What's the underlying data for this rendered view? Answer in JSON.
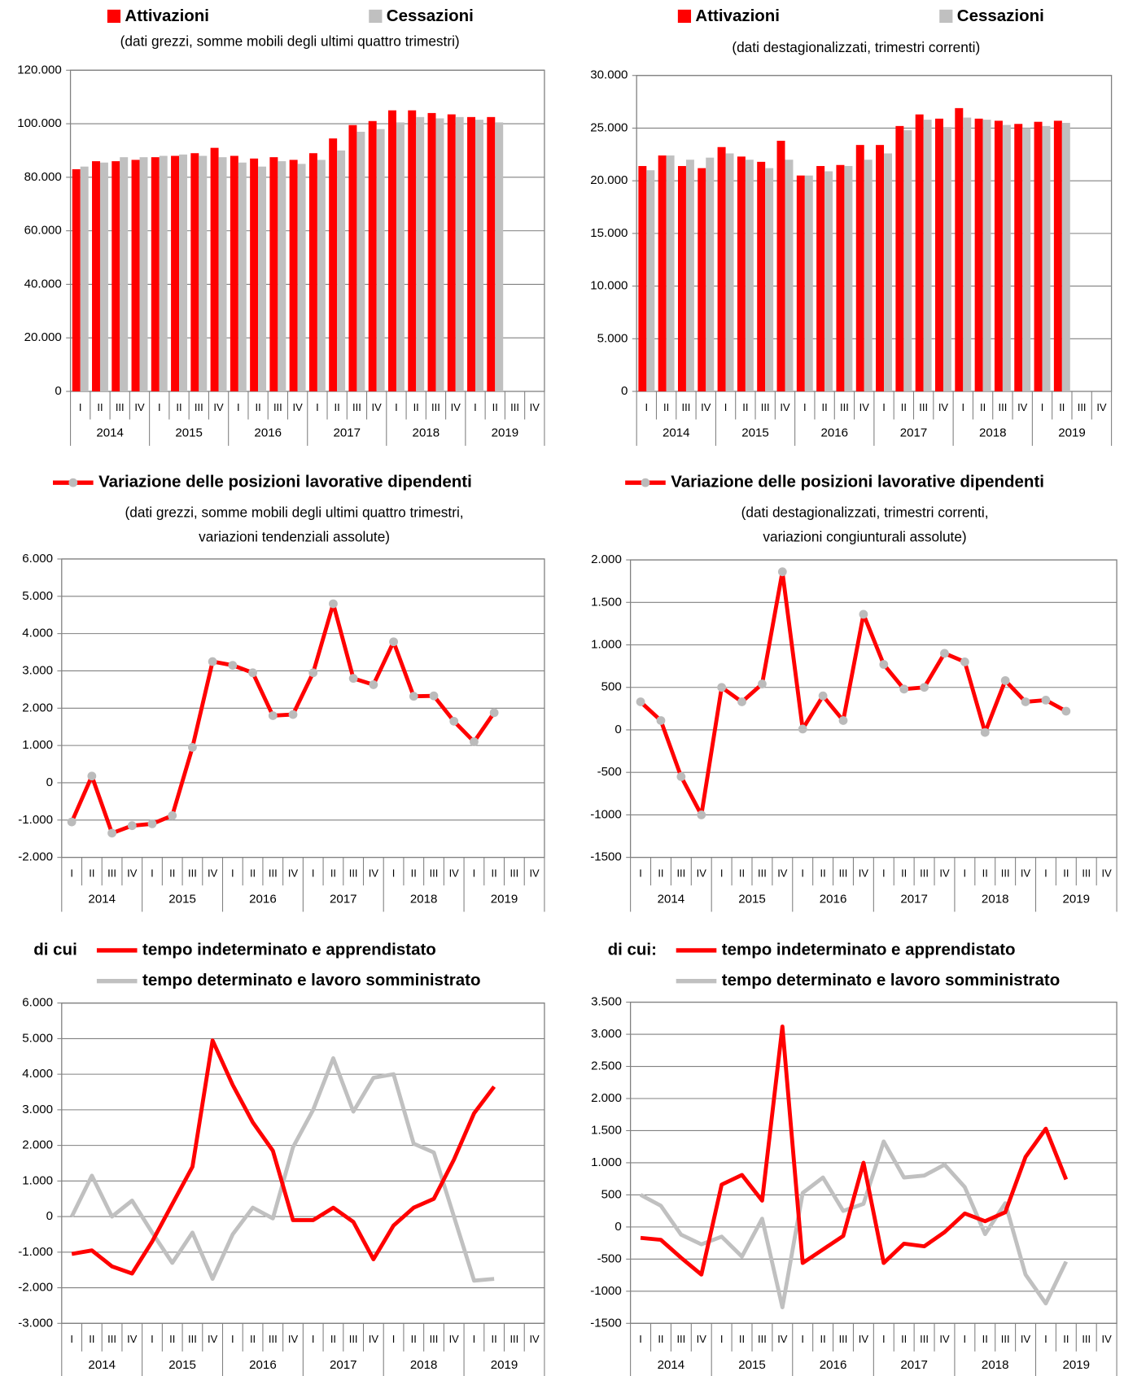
{
  "chart_data": [
    {
      "type": "bar",
      "subtitle": [
        "(dati grezzi, somme mobili degli ultimi quattro trimestri)"
      ],
      "categories": [
        "I",
        "II",
        "III",
        "IV",
        "I",
        "II",
        "III",
        "IV",
        "I",
        "II",
        "III",
        "IV",
        "I",
        "II",
        "III",
        "IV",
        "I",
        "II",
        "III",
        "IV",
        "I",
        "II",
        "III",
        "IV"
      ],
      "years": [
        "2014",
        "2015",
        "2016",
        "2017",
        "2018",
        "2019"
      ],
      "series": [
        {
          "name": "Attivazioni",
          "color": "#ff0000",
          "values": [
            83000,
            86000,
            86000,
            86500,
            87500,
            88000,
            89000,
            91000,
            88000,
            87000,
            87500,
            86500,
            89000,
            94500,
            99500,
            101000,
            105000,
            105000,
            104000,
            103500,
            102500,
            102500,
            null,
            null
          ]
        },
        {
          "name": "Cessazioni",
          "color": "#c0c0c0",
          "values": [
            84000,
            85500,
            87500,
            87500,
            88000,
            88500,
            88000,
            87500,
            85500,
            84000,
            86000,
            85000,
            86500,
            90000,
            97000,
            98000,
            100500,
            102500,
            102000,
            102500,
            101500,
            100500,
            null,
            null
          ]
        }
      ],
      "ylim": [
        0,
        120000
      ],
      "yticks": [
        0,
        {
          "value": 20000,
          "label": "20.000"
        },
        {
          "value": 40000,
          "label": "40.000"
        },
        {
          "value": 60000,
          "label": "60.000"
        },
        {
          "value": 80000,
          "label": "80.000"
        },
        {
          "value": 100000,
          "label": "100.000"
        },
        {
          "value": 120000,
          "label": "120.000"
        }
      ],
      "grid": true
    },
    {
      "type": "bar",
      "subtitle": [
        "(dati destagionalizzati, trimestri correnti)"
      ],
      "categories": [
        "I",
        "II",
        "III",
        "IV",
        "I",
        "II",
        "III",
        "IV",
        "I",
        "II",
        "III",
        "IV",
        "I",
        "II",
        "III",
        "IV",
        "I",
        "II",
        "III",
        "IV",
        "I",
        "II",
        "III",
        "IV"
      ],
      "years": [
        "2014",
        "2015",
        "2016",
        "2017",
        "2018",
        "2019"
      ],
      "series": [
        {
          "name": "Attivazioni",
          "color": "#ff0000",
          "values": [
            21400,
            22400,
            21400,
            21200,
            23200,
            22300,
            21800,
            23800,
            20500,
            21400,
            21500,
            23400,
            23400,
            25200,
            26300,
            25900,
            26900,
            25900,
            25700,
            25400,
            25600,
            25700,
            null,
            null
          ]
        },
        {
          "name": "Cessazioni",
          "color": "#c0c0c0",
          "values": [
            21000,
            22400,
            22000,
            22200,
            22600,
            22000,
            21200,
            22000,
            20500,
            20900,
            21400,
            22000,
            22600,
            24800,
            25800,
            25100,
            26000,
            25800,
            25300,
            25000,
            25200,
            25500,
            null,
            null
          ]
        }
      ],
      "ylim": [
        0,
        30000
      ],
      "yticks": [
        0,
        {
          "value": 5000,
          "label": "5.000"
        },
        {
          "value": 10000,
          "label": "10.000"
        },
        {
          "value": 15000,
          "label": "15.000"
        },
        {
          "value": 20000,
          "label": "20.000"
        },
        {
          "value": 25000,
          "label": "25.000"
        },
        {
          "value": 30000,
          "label": "30.000"
        }
      ],
      "grid": true
    },
    {
      "type": "line",
      "markers": true,
      "subtitle": [
        "(dati grezzi, somme mobili degli ultimi quattro trimestri,",
        "variazioni tendenziali assolute)"
      ],
      "categories": [
        "I",
        "II",
        "III",
        "IV",
        "I",
        "II",
        "III",
        "IV",
        "I",
        "II",
        "III",
        "IV",
        "I",
        "II",
        "III",
        "IV",
        "I",
        "II",
        "III",
        "IV",
        "I",
        "II",
        "III",
        "IV"
      ],
      "years": [
        "2014",
        "2015",
        "2016",
        "2017",
        "2018",
        "2019"
      ],
      "series": [
        {
          "name": "Variazione delle posizioni lavorative dipendenti",
          "color": "#ff0000",
          "values": [
            -1050,
            180,
            -1350,
            -1150,
            -1100,
            -880,
            950,
            3250,
            3150,
            2950,
            1800,
            1830,
            2950,
            4800,
            2800,
            2630,
            3780,
            2320,
            2330,
            1650,
            1100,
            1880,
            null,
            null
          ]
        }
      ],
      "ylim": [
        -2000,
        6000
      ],
      "yticks": [
        {
          "value": -2000,
          "label": "-2.000"
        },
        {
          "value": -1000,
          "label": "-1.000"
        },
        0,
        {
          "value": 1000,
          "label": "1.000"
        },
        {
          "value": 2000,
          "label": "2.000"
        },
        {
          "value": 3000,
          "label": "3.000"
        },
        {
          "value": 4000,
          "label": "4.000"
        },
        {
          "value": 5000,
          "label": "5.000"
        },
        {
          "value": 6000,
          "label": "6.000"
        }
      ],
      "grid": true
    },
    {
      "type": "line",
      "markers": true,
      "subtitle": [
        "(dati destagionalizzati, trimestri correnti,",
        "variazioni congiunturali assolute)"
      ],
      "categories": [
        "I",
        "II",
        "III",
        "IV",
        "I",
        "II",
        "III",
        "IV",
        "I",
        "II",
        "III",
        "IV",
        "I",
        "II",
        "III",
        "IV",
        "I",
        "II",
        "III",
        "IV",
        "I",
        "II",
        "III",
        "IV"
      ],
      "years": [
        "2014",
        "2015",
        "2016",
        "2017",
        "2018",
        "2019"
      ],
      "series": [
        {
          "name": "Variazione delle posizioni lavorative dipendenti",
          "color": "#ff0000",
          "values": [
            330,
            110,
            -550,
            -1000,
            500,
            330,
            540,
            1860,
            10,
            400,
            110,
            1360,
            770,
            480,
            500,
            900,
            800,
            -30,
            580,
            330,
            350,
            220,
            null,
            null
          ]
        }
      ],
      "ylim": [
        -1500,
        2000
      ],
      "yticks": [
        -1500,
        -1000,
        -500,
        0,
        500,
        {
          "value": 1000,
          "label": "1.000"
        },
        {
          "value": 1500,
          "label": "1.500"
        },
        {
          "value": 2000,
          "label": "2.000"
        }
      ],
      "grid": true
    },
    {
      "type": "line",
      "markers": false,
      "legend_prefix": "di cui",
      "categories": [
        "I",
        "II",
        "III",
        "IV",
        "I",
        "II",
        "III",
        "IV",
        "I",
        "II",
        "III",
        "IV",
        "I",
        "II",
        "III",
        "IV",
        "I",
        "II",
        "III",
        "IV",
        "I",
        "II",
        "III",
        "IV"
      ],
      "years": [
        "2014",
        "2015",
        "2016",
        "2017",
        "2018",
        "2019"
      ],
      "series": [
        {
          "name": "tempo indeterminato e apprendistato",
          "color": "#ff0000",
          "values": [
            -1050,
            -950,
            -1400,
            -1600,
            -700,
            350,
            1400,
            4950,
            3700,
            2650,
            1850,
            -100,
            -100,
            250,
            -150,
            -1200,
            -250,
            250,
            500,
            1600,
            2900,
            3650,
            null,
            null
          ]
        },
        {
          "name": "tempo determinato e lavoro somministrato",
          "color": "#c0c0c0",
          "values": [
            0,
            1150,
            0,
            450,
            -450,
            -1300,
            -450,
            -1750,
            -500,
            250,
            -50,
            1950,
            3000,
            4450,
            2950,
            3900,
            4000,
            2050,
            1800,
            0,
            -1800,
            -1750,
            null,
            null
          ]
        }
      ],
      "ylim": [
        -3000,
        6000
      ],
      "yticks": [
        {
          "value": -3000,
          "label": "-3.000"
        },
        {
          "value": -2000,
          "label": "-2.000"
        },
        {
          "value": -1000,
          "label": "-1.000"
        },
        0,
        {
          "value": 1000,
          "label": "1.000"
        },
        {
          "value": 2000,
          "label": "2.000"
        },
        {
          "value": 3000,
          "label": "3.000"
        },
        {
          "value": 4000,
          "label": "4.000"
        },
        {
          "value": 5000,
          "label": "5.000"
        },
        {
          "value": 6000,
          "label": "6.000"
        }
      ],
      "grid": true
    },
    {
      "type": "line",
      "markers": false,
      "legend_prefix": "di cui:",
      "categories": [
        "I",
        "II",
        "III",
        "IV",
        "I",
        "II",
        "III",
        "IV",
        "I",
        "II",
        "III",
        "IV",
        "I",
        "II",
        "III",
        "IV",
        "I",
        "II",
        "III",
        "IV",
        "I",
        "II",
        "III",
        "IV"
      ],
      "years": [
        "2014",
        "2015",
        "2016",
        "2017",
        "2018",
        "2019"
      ],
      "series": [
        {
          "name": "tempo indeterminato e apprendistato",
          "color": "#ff0000",
          "values": [
            -170,
            -200,
            -480,
            -740,
            660,
            810,
            410,
            3120,
            -560,
            -350,
            -140,
            1000,
            -560,
            -260,
            -300,
            -80,
            210,
            90,
            230,
            1090,
            1530,
            740,
            null,
            null
          ]
        },
        {
          "name": "tempo determinato e lavoro somministrato",
          "color": "#c0c0c0",
          "values": [
            500,
            330,
            -120,
            -270,
            -150,
            -460,
            130,
            -1250,
            530,
            770,
            250,
            360,
            1330,
            770,
            800,
            970,
            620,
            -110,
            370,
            -740,
            -1190,
            -540,
            null,
            null
          ]
        }
      ],
      "ylim": [
        -1500,
        3500
      ],
      "yticks": [
        -1500,
        -1000,
        -500,
        0,
        500,
        {
          "value": 1000,
          "label": "1.000"
        },
        {
          "value": 1500,
          "label": "1.500"
        },
        {
          "value": 2000,
          "label": "2.000"
        },
        {
          "value": 2500,
          "label": "2.500"
        },
        {
          "value": 3000,
          "label": "3.000"
        },
        {
          "value": 3500,
          "label": "3.500"
        }
      ],
      "grid": true
    }
  ]
}
